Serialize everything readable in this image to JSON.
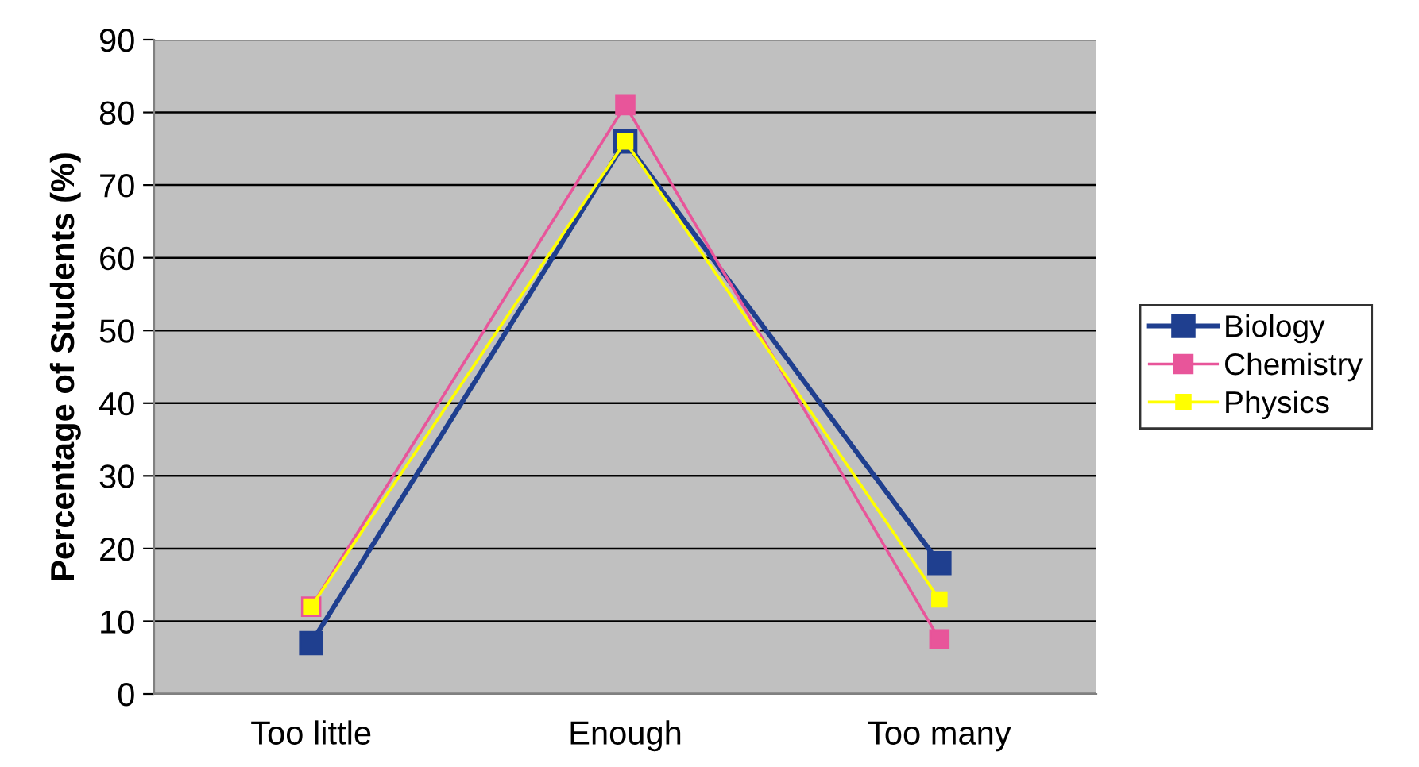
{
  "chart_data": {
    "type": "line",
    "ylabel": "Percentage of Students (%)",
    "categories": [
      "Too little",
      "Enough",
      "Too many"
    ],
    "series": [
      {
        "name": "Biology",
        "color": "#1f3f8f",
        "values": [
          7,
          76,
          18
        ]
      },
      {
        "name": "Chemistry",
        "color": "#e8559a",
        "values": [
          12,
          81,
          7.5
        ]
      },
      {
        "name": "Physics",
        "color": "#ffff00",
        "values": [
          12,
          76,
          13
        ]
      }
    ],
    "ylim": [
      0,
      90
    ],
    "yticks": [
      0,
      10,
      20,
      30,
      40,
      50,
      60,
      70,
      80,
      90
    ],
    "grid": "y",
    "legend": "right",
    "marker": "square",
    "line_style": "solid"
  }
}
